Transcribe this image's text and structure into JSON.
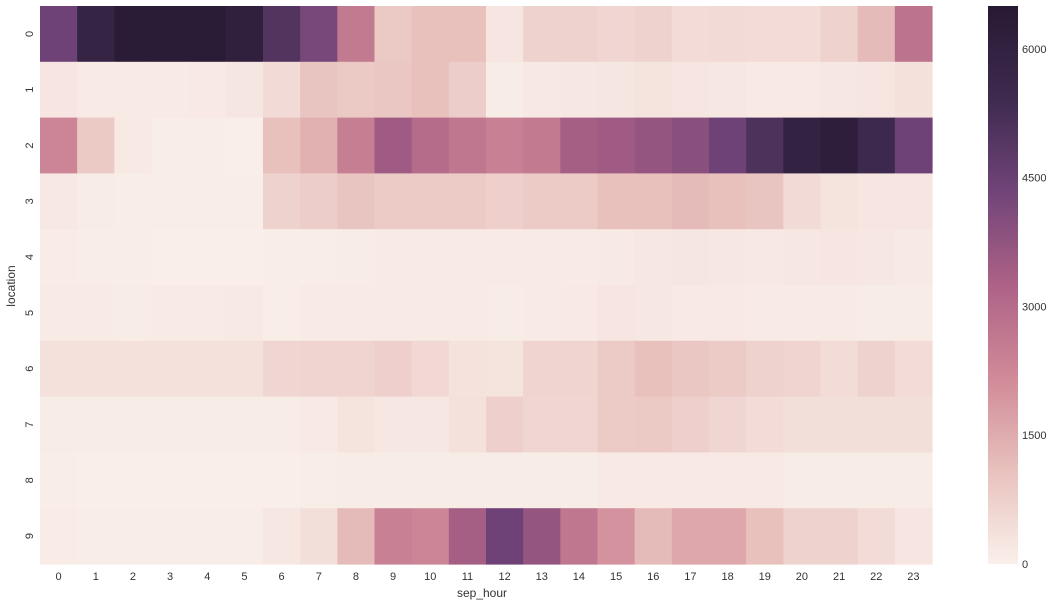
{
  "chart_data": {
    "type": "heatmap",
    "title": "",
    "xlabel": "sep_hour",
    "ylabel": "location",
    "x": [
      "0",
      "1",
      "2",
      "3",
      "4",
      "5",
      "6",
      "7",
      "8",
      "9",
      "10",
      "11",
      "12",
      "13",
      "14",
      "15",
      "16",
      "17",
      "18",
      "19",
      "20",
      "21",
      "22",
      "23"
    ],
    "y": [
      "0",
      "1",
      "2",
      "3",
      "4",
      "5",
      "6",
      "7",
      "8",
      "9"
    ],
    "values": [
      [
        4400,
        5800,
        6400,
        6400,
        6400,
        6100,
        5000,
        4200,
        2600,
        900,
        1100,
        1100,
        250,
        700,
        700,
        600,
        700,
        450,
        500,
        450,
        450,
        700,
        1200,
        2800
      ],
      [
        250,
        130,
        130,
        130,
        150,
        220,
        500,
        1000,
        900,
        950,
        1100,
        800,
        100,
        180,
        200,
        220,
        300,
        250,
        200,
        150,
        150,
        200,
        250,
        350
      ],
      [
        2300,
        900,
        150,
        70,
        70,
        50,
        1100,
        1400,
        2500,
        3500,
        3000,
        2700,
        2400,
        2600,
        3400,
        3500,
        3700,
        3900,
        4400,
        5100,
        5900,
        6200,
        5500,
        4400
      ],
      [
        180,
        100,
        80,
        70,
        60,
        60,
        700,
        800,
        1000,
        850,
        850,
        850,
        750,
        850,
        850,
        1100,
        1100,
        1200,
        1100,
        1000,
        500,
        300,
        250,
        250
      ],
      [
        90,
        70,
        60,
        50,
        50,
        40,
        60,
        80,
        100,
        120,
        120,
        130,
        120,
        130,
        140,
        170,
        200,
        220,
        200,
        190,
        200,
        250,
        200,
        170
      ],
      [
        140,
        110,
        100,
        120,
        130,
        160,
        80,
        140,
        120,
        120,
        130,
        120,
        100,
        120,
        150,
        250,
        200,
        150,
        150,
        130,
        120,
        110,
        100,
        100
      ],
      [
        350,
        350,
        350,
        350,
        350,
        350,
        600,
        650,
        650,
        750,
        550,
        330,
        300,
        650,
        650,
        850,
        1100,
        950,
        850,
        700,
        650,
        450,
        700,
        450
      ],
      [
        100,
        100,
        100,
        100,
        100,
        100,
        100,
        150,
        300,
        200,
        200,
        350,
        750,
        600,
        600,
        850,
        900,
        750,
        600,
        450,
        400,
        400,
        400,
        400
      ],
      [
        60,
        50,
        50,
        50,
        50,
        50,
        50,
        80,
        100,
        100,
        100,
        100,
        100,
        100,
        100,
        150,
        150,
        150,
        150,
        150,
        100,
        100,
        100,
        100
      ],
      [
        90,
        80,
        80,
        80,
        80,
        80,
        200,
        400,
        1200,
        2400,
        2300,
        3400,
        4400,
        3700,
        2700,
        2000,
        1200,
        1600,
        1600,
        1100,
        700,
        700,
        450,
        250
      ]
    ],
    "colorbar": {
      "min": 0,
      "max": 6500,
      "ticks": [
        0,
        1500,
        3000,
        4500,
        6000
      ]
    },
    "colormap": [
      "#faf0eb",
      "#e8c1bd",
      "#d08a98",
      "#ad6286",
      "#714479",
      "#3e2a4f",
      "#281933"
    ],
    "grid": false,
    "legend": "colorbar-right"
  }
}
